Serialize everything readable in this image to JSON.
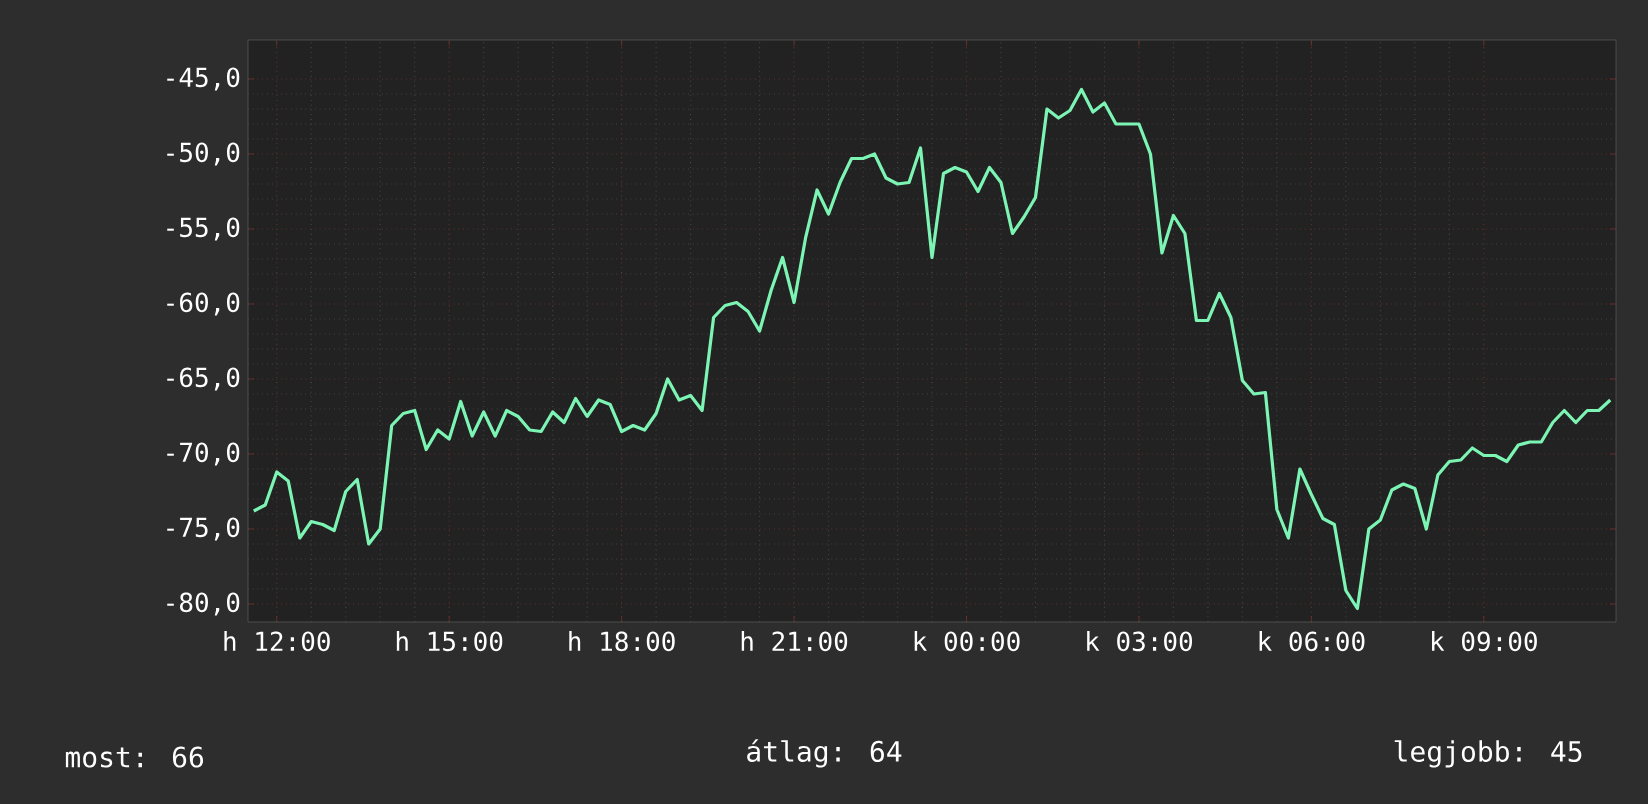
{
  "chart_data": {
    "type": "line",
    "categories": [
      null,
      null,
      "h 12:00",
      null,
      null,
      null,
      null,
      null,
      null,
      null,
      null,
      null,
      null,
      null,
      null,
      null,
      null,
      "h 15:00",
      null,
      null,
      null,
      null,
      null,
      null,
      null,
      null,
      null,
      null,
      null,
      null,
      null,
      null,
      "h 18:00",
      null,
      null,
      null,
      null,
      null,
      null,
      null,
      null,
      null,
      null,
      null,
      null,
      null,
      null,
      "h 21:00",
      null,
      null,
      null,
      null,
      null,
      null,
      null,
      null,
      null,
      null,
      null,
      null,
      null,
      null,
      "k 00:00",
      null,
      null,
      null,
      null,
      null,
      null,
      null,
      null,
      null,
      null,
      null,
      null,
      null,
      null,
      "k 03:00",
      null,
      null,
      null,
      null,
      null,
      null,
      null,
      null,
      null,
      null,
      null,
      null,
      null,
      null,
      "k 06:00",
      null,
      null,
      null,
      null,
      null,
      null,
      null,
      null,
      null,
      null,
      null,
      null,
      null,
      null,
      "k 09:00",
      null,
      null,
      null,
      null,
      null,
      null,
      null,
      null,
      null,
      null,
      null
    ],
    "series": [
      {
        "color": "#7cf5b4",
        "values": [
          -73.8,
          -73.4,
          -71.2,
          -71.8,
          -75.6,
          -74.5,
          -74.7,
          -75.1,
          -72.5,
          -71.7,
          -76,
          -75,
          -68.1,
          -67.3,
          -67.1,
          -69.7,
          -68.4,
          -69,
          -66.5,
          -68.8,
          -67.2,
          -68.8,
          -67.1,
          -67.5,
          -68.4,
          -68.5,
          -67.2,
          -67.9,
          -66.3,
          -67.5,
          -66.4,
          -66.7,
          -68.5,
          -68.1,
          -68.4,
          -67.3,
          -65,
          -66.4,
          -66.1,
          -67.1,
          -60.9,
          -60.1,
          -59.9,
          -60.5,
          -61.8,
          -59.1,
          -56.9,
          -59.9,
          -55.6,
          -52.4,
          -54,
          -51.9,
          -50.3,
          -50.3,
          -50,
          -51.6,
          -52,
          -51.9,
          -49.6,
          -56.9,
          -51.3,
          -50.9,
          -51.2,
          -52.5,
          -50.9,
          -51.9,
          -55.3,
          -54.2,
          -52.9,
          -47,
          -47.6,
          -47.1,
          -45.7,
          -47.2,
          -46.6,
          -48,
          -48,
          -48,
          -50,
          -56.6,
          -54.1,
          -55.3,
          -61.1,
          -61.1,
          -59.3,
          -60.9,
          -65.1,
          -66,
          -65.9,
          -73.7,
          -75.6,
          -71,
          -72.7,
          -74.3,
          -74.7,
          -79.1,
          -80.3,
          -75,
          -74.4,
          -72.4,
          -72,
          -72.3,
          -75,
          -71.4,
          -70.5,
          -70.4,
          -69.6,
          -70.1,
          -70.1,
          -70.5,
          -69.4,
          -69.2,
          -69.2,
          -67.9,
          -67.1,
          -67.9,
          -67.1,
          -67.1,
          -66.4
        ]
      }
    ],
    "ylim": [
      -81.2,
      -42.4
    ],
    "yticks": [
      {
        "value": -80,
        "label": "-80,0"
      },
      {
        "value": -75,
        "label": "-75,0"
      },
      {
        "value": -70,
        "label": "-70,0"
      },
      {
        "value": -65,
        "label": "-65,0"
      },
      {
        "value": -60,
        "label": "-60,0"
      },
      {
        "value": -55,
        "label": "-55,0"
      },
      {
        "value": -50,
        "label": "-50,0"
      },
      {
        "value": -45,
        "label": "-45,0"
      }
    ],
    "grid": true,
    "annotations": [
      "most: 66",
      "átlag: 64",
      "legjobb: 45"
    ]
  }
}
